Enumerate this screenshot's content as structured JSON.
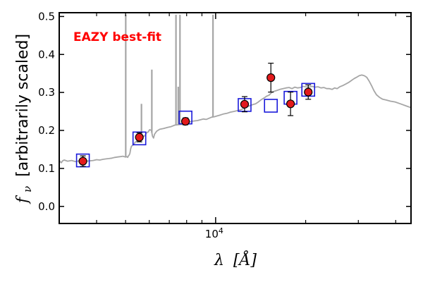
{
  "chart_data": {
    "type": "scatter",
    "annotation": "EAZY best-fit",
    "colors": {
      "template": "#a6a6a6",
      "model_box": "#1a1adb",
      "obs_fill": "#e31a1c",
      "obs_edge": "#000000",
      "annotation": "#ff0000"
    },
    "xlabel": {
      "main": "λ",
      "unit": "[Å]"
    },
    "ylabel": {
      "symbol": "f",
      "sub": "ν",
      "text": "[arbitrarily scaled]"
    },
    "x_scale": "log",
    "xlim": [
      3000,
      45000
    ],
    "ylim": [
      -0.045,
      0.51
    ],
    "y_ticks": [
      "0.0",
      "0.1",
      "0.2",
      "0.3",
      "0.4",
      "0.5"
    ],
    "x_tick_label": {
      "base": "10",
      "exp": "4"
    },
    "grid": false,
    "template_spectrum": [
      [
        3000,
        0.121
      ],
      [
        3020,
        0.118
      ],
      [
        3050,
        0.115
      ],
      [
        3080,
        0.12
      ],
      [
        3120,
        0.122
      ],
      [
        3200,
        0.119
      ],
      [
        3300,
        0.121
      ],
      [
        3400,
        0.118
      ],
      [
        3500,
        0.12
      ],
      [
        3600,
        0.117
      ],
      [
        3700,
        0.119
      ],
      [
        3800,
        0.12
      ],
      [
        3900,
        0.121
      ],
      [
        4000,
        0.123
      ],
      [
        4100,
        0.122
      ],
      [
        4200,
        0.124
      ],
      [
        4300,
        0.125
      ],
      [
        4400,
        0.126
      ],
      [
        4500,
        0.127
      ],
      [
        4600,
        0.129
      ],
      [
        4700,
        0.13
      ],
      [
        4800,
        0.131
      ],
      [
        4900,
        0.132
      ],
      [
        5000,
        0.13
      ],
      [
        5050,
        0.131
      ],
      [
        5080,
        0.129
      ],
      [
        5110,
        0.133
      ],
      [
        5140,
        0.135
      ],
      [
        5170,
        0.14
      ],
      [
        5200,
        0.152
      ],
      [
        5230,
        0.158
      ],
      [
        5260,
        0.16
      ],
      [
        5300,
        0.162
      ],
      [
        5350,
        0.166
      ],
      [
        5400,
        0.17
      ],
      [
        5450,
        0.172
      ],
      [
        5520,
        0.176
      ],
      [
        5600,
        0.182
      ],
      [
        5700,
        0.184
      ],
      [
        5800,
        0.186
      ],
      [
        5880,
        0.194
      ],
      [
        5950,
        0.196
      ],
      [
        6020,
        0.202
      ],
      [
        6100,
        0.2
      ],
      [
        6150,
        0.185
      ],
      [
        6200,
        0.18
      ],
      [
        6250,
        0.19
      ],
      [
        6350,
        0.198
      ],
      [
        6500,
        0.203
      ],
      [
        6700,
        0.205
      ],
      [
        6900,
        0.208
      ],
      [
        7100,
        0.21
      ],
      [
        7300,
        0.214
      ],
      [
        7500,
        0.215
      ],
      [
        7700,
        0.216
      ],
      [
        7900,
        0.214
      ],
      [
        8100,
        0.22
      ],
      [
        8300,
        0.224
      ],
      [
        8500,
        0.225
      ],
      [
        8700,
        0.226
      ],
      [
        8900,
        0.228
      ],
      [
        9100,
        0.23
      ],
      [
        9300,
        0.229
      ],
      [
        9500,
        0.232
      ],
      [
        9700,
        0.235
      ],
      [
        9900,
        0.236
      ],
      [
        10100,
        0.238
      ],
      [
        10300,
        0.24
      ],
      [
        10600,
        0.243
      ],
      [
        10900,
        0.245
      ],
      [
        11200,
        0.248
      ],
      [
        11500,
        0.25
      ],
      [
        11800,
        0.252
      ],
      [
        12100,
        0.254
      ],
      [
        12400,
        0.258
      ],
      [
        12700,
        0.262
      ],
      [
        13000,
        0.265
      ],
      [
        13300,
        0.268
      ],
      [
        13600,
        0.27
      ],
      [
        13900,
        0.275
      ],
      [
        14200,
        0.281
      ],
      [
        14500,
        0.285
      ],
      [
        14800,
        0.29
      ],
      [
        15100,
        0.293
      ],
      [
        15400,
        0.3
      ],
      [
        15700,
        0.303
      ],
      [
        16000,
        0.305
      ],
      [
        16400,
        0.308
      ],
      [
        16800,
        0.31
      ],
      [
        17200,
        0.312
      ],
      [
        17600,
        0.313
      ],
      [
        18000,
        0.31
      ],
      [
        18400,
        0.314
      ],
      [
        18800,
        0.312
      ],
      [
        19200,
        0.313
      ],
      [
        19600,
        0.316
      ],
      [
        20000,
        0.315
      ],
      [
        20500,
        0.314
      ],
      [
        21000,
        0.316
      ],
      [
        21500,
        0.314
      ],
      [
        22000,
        0.315
      ],
      [
        22500,
        0.312
      ],
      [
        23000,
        0.313
      ],
      [
        23500,
        0.31
      ],
      [
        24000,
        0.31
      ],
      [
        24500,
        0.308
      ],
      [
        25000,
        0.312
      ],
      [
        25500,
        0.31
      ],
      [
        26000,
        0.315
      ],
      [
        26600,
        0.318
      ],
      [
        27200,
        0.322
      ],
      [
        27800,
        0.326
      ],
      [
        28400,
        0.331
      ],
      [
        29000,
        0.336
      ],
      [
        29600,
        0.34
      ],
      [
        30200,
        0.344
      ],
      [
        30800,
        0.346
      ],
      [
        31400,
        0.344
      ],
      [
        32000,
        0.34
      ],
      [
        32600,
        0.33
      ],
      [
        33200,
        0.318
      ],
      [
        33800,
        0.305
      ],
      [
        34500,
        0.294
      ],
      [
        35300,
        0.287
      ],
      [
        36200,
        0.282
      ],
      [
        37200,
        0.28
      ],
      [
        38400,
        0.277
      ],
      [
        39800,
        0.275
      ],
      [
        41500,
        0.27
      ],
      [
        43500,
        0.264
      ],
      [
        45000,
        0.26
      ]
    ],
    "emission_lines": [
      {
        "x": 5006,
        "peak": 0.505
      },
      {
        "x": 5650,
        "peak": 0.27
      },
      {
        "x": 6120,
        "peak": 0.36
      },
      {
        "x": 7370,
        "peak": 0.505
      },
      {
        "x": 7500,
        "peak": 0.315
      },
      {
        "x": 7600,
        "peak": 0.505
      },
      {
        "x": 9800,
        "peak": 0.505
      }
    ],
    "model_points": [
      {
        "x": 3600,
        "y": 0.121
      },
      {
        "x": 5560,
        "y": 0.179
      },
      {
        "x": 7930,
        "y": 0.234
      },
      {
        "x": 12500,
        "y": 0.267
      },
      {
        "x": 15300,
        "y": 0.265
      },
      {
        "x": 17800,
        "y": 0.286
      },
      {
        "x": 20400,
        "y": 0.307
      }
    ],
    "observed_points": [
      {
        "x": 3600,
        "y": 0.119,
        "err": 0.014
      },
      {
        "x": 5560,
        "y": 0.182,
        "err": 0.012
      },
      {
        "x": 7930,
        "y": 0.224,
        "err": 0.009
      },
      {
        "x": 12500,
        "y": 0.269,
        "err": 0.02
      },
      {
        "x": 15300,
        "y": 0.339,
        "err": 0.038
      },
      {
        "x": 17800,
        "y": 0.27,
        "err": 0.031
      },
      {
        "x": 20400,
        "y": 0.301,
        "err": 0.019
      }
    ]
  }
}
